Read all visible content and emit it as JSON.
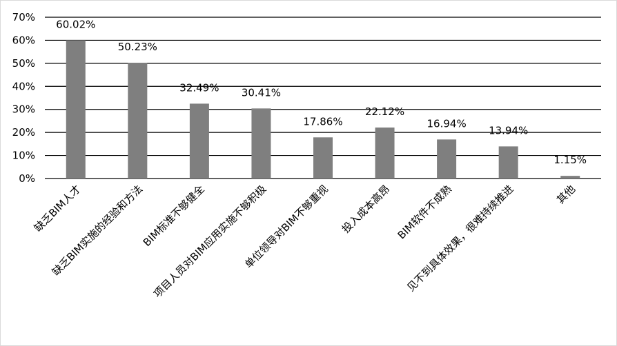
{
  "chart_data": {
    "type": "bar",
    "categories": [
      "缺乏BIM人才",
      "缺乏BIM实施的经验和方法",
      "BIM标准不够健全",
      "项目人员对BIM应用实施不够积极",
      "单位领导对BIM不够重视",
      "投入成本高昂",
      "BIM软件不成熟",
      "见不到具体效果，很难持续推进",
      "其他"
    ],
    "values": [
      60.02,
      50.23,
      32.49,
      30.41,
      17.86,
      22.12,
      16.94,
      13.94,
      1.15
    ],
    "data_labels": [
      "60.02%",
      "50.23%",
      "32.49%",
      "30.41%",
      "17.86%",
      "22.12%",
      "16.94%",
      "13.94%",
      "1.15%"
    ],
    "title": "",
    "xlabel": "",
    "ylabel": "",
    "ylim": [
      0,
      70
    ],
    "yticks": [
      0,
      10,
      20,
      30,
      40,
      50,
      60,
      70
    ],
    "ytick_labels": [
      "0%",
      "10%",
      "20%",
      "30%",
      "40%",
      "50%",
      "60%",
      "70%"
    ],
    "grid": true,
    "legend": "none",
    "colors": {
      "bar": "#7f7f7f",
      "grid": "#000000",
      "text": "#000000"
    }
  }
}
